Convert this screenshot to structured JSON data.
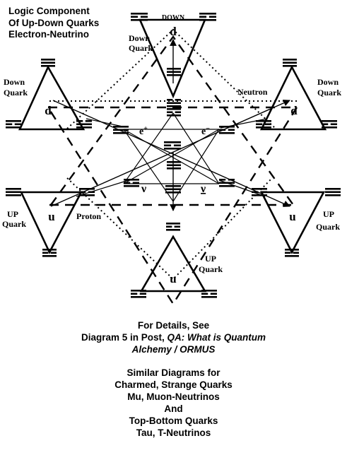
{
  "title": {
    "line1": "Logic Component",
    "line2": "Of Up-Down Quarks",
    "line3": "Electron-Neutrino"
  },
  "labels": {
    "down_top": "DOWN",
    "d_top": "d",
    "down_quark_tl": "Down Quark",
    "down_quark_left": "Down Quark",
    "down_quark_right": "Down Quark",
    "neutron": "Neutron",
    "d_left": "d",
    "d_right": "d",
    "e_plus": "e",
    "e_plus_sup": "+",
    "e_minus": "e",
    "e_minus_sup": "−",
    "nu": "ν",
    "nu_bar": "ν",
    "up_quark_left": "UP Quark",
    "proton": "Proton",
    "u_left": "u",
    "u_right": "u",
    "up_quark_right": "UP Quark",
    "up_quark_bottom": "UP Quark",
    "u_bottom": "u"
  },
  "caption": {
    "line1": "For Details, See",
    "line2_prefix": "Diagram 5 in Post, ",
    "line2_italic": "QA: What is Quantum",
    "line3_italic": "Alchemy / ORMUS",
    "similar1": "Similar Diagrams for",
    "similar2": "Charmed, Strange Quarks",
    "similar3": "Mu, Muon-Neutrinos",
    "similar4": "And",
    "similar5": "Top-Bottom Quarks",
    "similar6": "Tau, T-Neutrinos"
  },
  "symbols": {
    "trigram": "☰"
  }
}
